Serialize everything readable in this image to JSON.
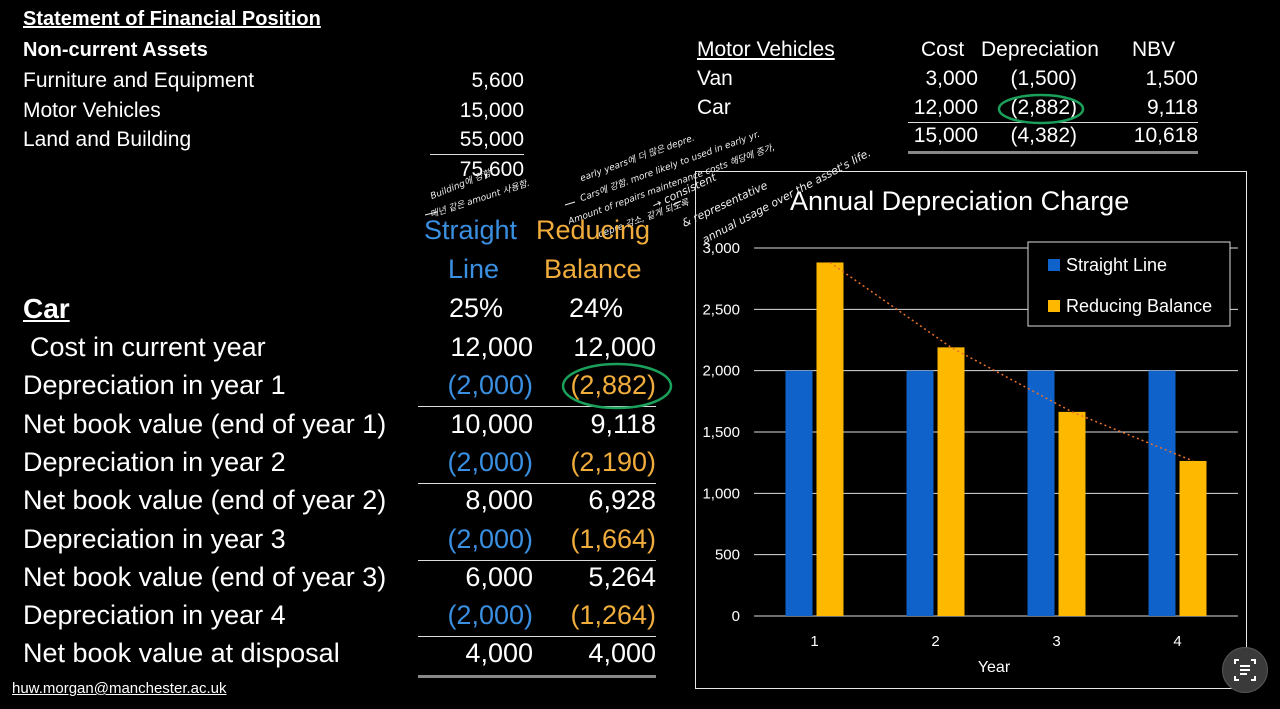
{
  "sofp": {
    "title": "Statement of Financial Position",
    "subtitle": "Non-current Assets",
    "rows": [
      {
        "label": "Furniture and Equipment",
        "value": "5,600"
      },
      {
        "label": "Motor Vehicles",
        "value": "15,000"
      },
      {
        "label": "Land and Building",
        "value": "55,000"
      }
    ],
    "total": "75,600"
  },
  "motor_vehicles": {
    "title": "Motor Vehicles",
    "headers": [
      "Cost",
      "Depreciation",
      "NBV"
    ],
    "rows": [
      {
        "label": "Van",
        "cost": "3,000",
        "dep": "(1,500)",
        "nbv": "1,500"
      },
      {
        "label": "Car",
        "cost": "12,000",
        "dep": "(2,882)",
        "nbv": "9,118"
      },
      {
        "label": "",
        "cost": "15,000",
        "dep": "(4,382)",
        "nbv": "10,618"
      }
    ]
  },
  "notes": {
    "left_1": "Building에 강함",
    "left_2": "매년 같은 amount 사용함.",
    "mid_1": "early years에 더 많은 depre.",
    "mid_2": "Cars에 강함. more likely to used in early yr.",
    "mid_3": "Amount of repairs maintenance costs 해당에 증가,",
    "mid_4": "depre 감소, 같게 되도록",
    "right_1": "→ consistent",
    "right_2": "& representative",
    "right_3": "annual usage over the asset's life."
  },
  "table": {
    "col1_head": [
      "Straight",
      "Line"
    ],
    "col2_head": [
      "Reducing",
      "Balance"
    ],
    "asset": "Car",
    "rates": [
      "25%",
      "24%"
    ],
    "rows": [
      {
        "label": "Cost in current year",
        "sl": "12,000",
        "rb": "12,000",
        "type": "plain"
      },
      {
        "label": "Depreciation in year 1",
        "sl": "(2,000)",
        "rb": "(2,882)",
        "type": "dep"
      },
      {
        "label": "Net book value (end of year 1)",
        "sl": "10,000",
        "rb": "9,118",
        "type": "plain"
      },
      {
        "label": "Depreciation in year 2",
        "sl": "(2,000)",
        "rb": "(2,190)",
        "type": "dep"
      },
      {
        "label": "Net book value (end of year 2)",
        "sl": "8,000",
        "rb": "6,928",
        "type": "plain"
      },
      {
        "label": "Depreciation in year 3",
        "sl": "(2,000)",
        "rb": "(1,664)",
        "type": "dep"
      },
      {
        "label": "Net book value (end of year 3)",
        "sl": "6,000",
        "rb": "5,264",
        "type": "plain"
      },
      {
        "label": "Depreciation in year 4",
        "sl": "(2,000)",
        "rb": "(1,264)",
        "type": "dep"
      },
      {
        "label": "Net book value at disposal",
        "sl": "4,000",
        "rb": "4,000",
        "type": "plain"
      }
    ]
  },
  "email": "huw.morgan@manchester.ac.uk",
  "colors": {
    "straight": "#0f62c9",
    "reducing": "#ffb800",
    "trend": "#e8702a",
    "circle": "#1aa05a"
  },
  "chart_data": {
    "type": "bar",
    "title": "Annual Depreciation Charge",
    "categories": [
      "1",
      "2",
      "3",
      "4"
    ],
    "series": [
      {
        "name": "Straight Line",
        "values": [
          2000,
          2000,
          2000,
          2000
        ]
      },
      {
        "name": "Reducing Balance",
        "values": [
          2882,
          2190,
          1664,
          1264
        ]
      }
    ],
    "xlabel": "Year",
    "ylabel": "",
    "ylim": [
      0,
      3000
    ],
    "yticks": [
      "0",
      "500",
      "1,000",
      "1,500",
      "2,000",
      "2,500",
      "3,000"
    ],
    "grid": true,
    "legend": "top-right",
    "trendline": "Reducing Balance"
  }
}
